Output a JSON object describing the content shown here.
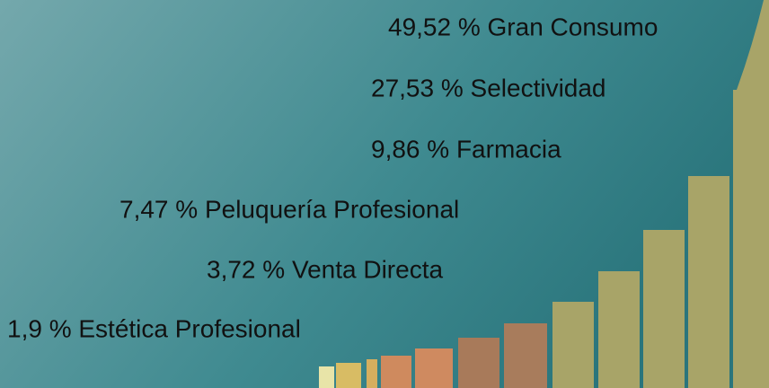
{
  "items": [
    {
      "text": "49,52 % Gran Consumo"
    },
    {
      "text": "27,53 % Selectividad"
    },
    {
      "text": "9,86 % Farmacia"
    },
    {
      "text": "7,47 % Peluquería Profesional"
    },
    {
      "text": "3,72 % Venta Directa"
    },
    {
      "text": "1,9 % Estética Profesional"
    }
  ]
}
